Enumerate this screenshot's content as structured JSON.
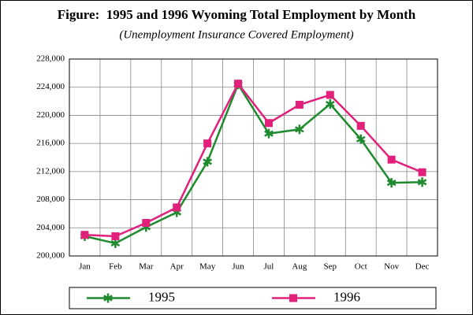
{
  "chart_data": {
    "type": "line",
    "title": "Figure:  1995 and 1996 Wyoming Total Employment by Month",
    "subtitle": "(Unemployment Insurance Covered Employment)",
    "categories": [
      "Jan",
      "Feb",
      "Mar",
      "Apr",
      "May",
      "Jun",
      "Jul",
      "Aug",
      "Sep",
      "Oct",
      "Nov",
      "Dec"
    ],
    "series": [
      {
        "name": "1995",
        "color": "#1f8a2e",
        "marker": "star",
        "values": [
          202800,
          201800,
          204100,
          206200,
          213400,
          224400,
          217400,
          218000,
          221600,
          216600,
          210400,
          210500
        ]
      },
      {
        "name": "1996",
        "color": "#e0207a",
        "marker": "square",
        "values": [
          203000,
          202800,
          204700,
          206900,
          216000,
          224500,
          218900,
          221500,
          222900,
          218500,
          213700,
          211900
        ]
      }
    ],
    "ylim": [
      200000,
      228000
    ],
    "yticks": [
      {
        "value": 200000,
        "label": "200,000"
      },
      {
        "value": 204000,
        "label": "204,000"
      },
      {
        "value": 208000,
        "label": "208,000"
      },
      {
        "value": 212000,
        "label": "212,000"
      },
      {
        "value": 216000,
        "label": "216,000"
      },
      {
        "value": 220000,
        "label": "220,000"
      },
      {
        "value": 224000,
        "label": "224,000"
      },
      {
        "value": 228000,
        "label": "228,000"
      }
    ],
    "grid": true,
    "legend": "bottom"
  }
}
